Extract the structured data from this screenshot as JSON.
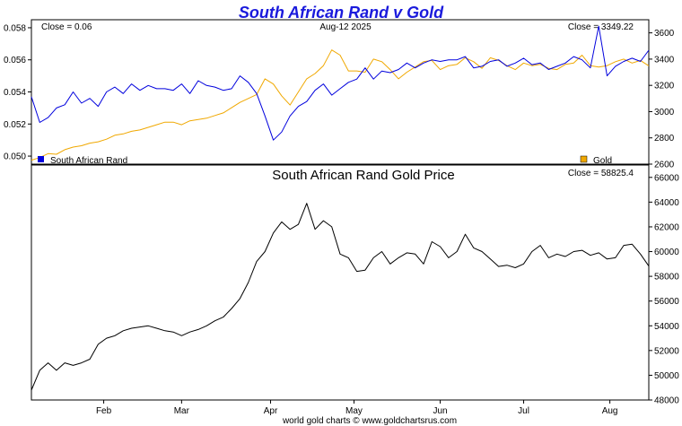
{
  "chart_data": [
    {
      "type": "line",
      "title": "South African Rand v Gold",
      "date_label": "Aug-12  2025",
      "close_left": "Close = 0.06",
      "close_right": "Close = 3349.22",
      "legend": [
        {
          "name": "South African Rand",
          "color": "#0000dd",
          "position": "bottom-left"
        },
        {
          "name": "Gold",
          "color": "#f0a800",
          "position": "bottom-right"
        }
      ],
      "y_left": {
        "min": 0.0495,
        "max": 0.0585,
        "ticks": [
          "0.050",
          "0.052",
          "0.054",
          "0.056",
          "0.058"
        ],
        "tick_values": [
          0.05,
          0.052,
          0.054,
          0.056,
          0.058
        ]
      },
      "y_right": {
        "min": 2600,
        "max": 3700,
        "ticks": [
          "2600",
          "2800",
          "3000",
          "3200",
          "3400",
          "3600"
        ],
        "tick_values": [
          2600,
          2800,
          3000,
          3200,
          3400,
          3600
        ]
      },
      "x_range": [
        0,
        222
      ],
      "series": [
        {
          "name": "South African Rand",
          "axis": "left",
          "color": "#0000dd",
          "x": [
            0,
            3,
            6,
            9,
            12,
            15,
            18,
            21,
            24,
            27,
            30,
            33,
            36,
            39,
            42,
            45,
            48,
            51,
            54,
            57,
            60,
            63,
            66,
            69,
            72,
            75,
            78,
            81,
            84,
            87,
            90,
            93,
            96,
            99,
            102,
            105,
            108,
            111,
            114,
            117,
            120,
            123,
            126,
            129,
            132,
            135,
            138,
            141,
            144,
            147,
            150,
            153,
            156,
            159,
            162,
            165,
            168,
            171,
            174,
            177,
            180,
            183,
            186,
            189,
            192,
            195,
            198,
            201,
            204,
            207,
            210,
            213,
            216,
            219,
            222
          ],
          "values": [
            0.0537,
            0.0521,
            0.0524,
            0.053,
            0.0532,
            0.054,
            0.0533,
            0.0536,
            0.0531,
            0.054,
            0.0543,
            0.0539,
            0.0545,
            0.0541,
            0.0544,
            0.0542,
            0.0542,
            0.0541,
            0.0545,
            0.0539,
            0.0547,
            0.0544,
            0.0543,
            0.0541,
            0.0542,
            0.055,
            0.0546,
            0.0539,
            0.0525,
            0.051,
            0.0515,
            0.0525,
            0.0531,
            0.0534,
            0.0541,
            0.0545,
            0.0538,
            0.0542,
            0.0546,
            0.0548,
            0.0555,
            0.0548,
            0.0553,
            0.0552,
            0.0554,
            0.0558,
            0.0555,
            0.0558,
            0.056,
            0.0559,
            0.056,
            0.056,
            0.0562,
            0.0555,
            0.0556,
            0.0559,
            0.056,
            0.0556,
            0.0558,
            0.0561,
            0.0557,
            0.0558,
            0.0554,
            0.0556,
            0.0558,
            0.0562,
            0.056,
            0.0555,
            0.0581,
            0.055,
            0.0556,
            0.0559,
            0.0561,
            0.0559,
            0.0566
          ]
        },
        {
          "name": "Gold",
          "axis": "right",
          "color": "#f0a800",
          "x": [
            0,
            3,
            6,
            9,
            12,
            15,
            18,
            21,
            24,
            27,
            30,
            33,
            36,
            39,
            42,
            45,
            48,
            51,
            54,
            57,
            60,
            63,
            66,
            69,
            72,
            75,
            78,
            81,
            84,
            87,
            90,
            93,
            96,
            99,
            102,
            105,
            108,
            111,
            114,
            117,
            120,
            123,
            126,
            129,
            132,
            135,
            138,
            141,
            144,
            147,
            150,
            153,
            156,
            159,
            162,
            165,
            168,
            171,
            174,
            177,
            180,
            183,
            186,
            189,
            192,
            195,
            198,
            201,
            204,
            207,
            210,
            213,
            216,
            219,
            222
          ],
          "values": [
            2630,
            2650,
            2680,
            2675,
            2710,
            2730,
            2740,
            2760,
            2770,
            2790,
            2820,
            2830,
            2850,
            2860,
            2880,
            2900,
            2920,
            2920,
            2900,
            2930,
            2940,
            2950,
            2970,
            2990,
            3030,
            3070,
            3100,
            3130,
            3250,
            3210,
            3120,
            3050,
            3150,
            3250,
            3290,
            3350,
            3470,
            3430,
            3310,
            3310,
            3300,
            3400,
            3380,
            3320,
            3250,
            3300,
            3340,
            3380,
            3390,
            3320,
            3350,
            3360,
            3410,
            3380,
            3330,
            3410,
            3390,
            3350,
            3320,
            3370,
            3350,
            3360,
            3330,
            3320,
            3360,
            3370,
            3430,
            3350,
            3340,
            3350,
            3380,
            3400,
            3370,
            3390,
            3349
          ]
        }
      ]
    },
    {
      "type": "line",
      "title": "South African Rand Gold Price",
      "close": "Close = 58825.4",
      "y_right": {
        "min": 48000,
        "max": 67000,
        "ticks": [
          "48000",
          "50000",
          "52000",
          "54000",
          "56000",
          "58000",
          "60000",
          "62000",
          "64000",
          "66000"
        ],
        "tick_values": [
          48000,
          50000,
          52000,
          54000,
          56000,
          58000,
          60000,
          62000,
          64000,
          66000
        ]
      },
      "x_range": [
        0,
        222
      ],
      "x_ticks": [
        {
          "label": "Feb",
          "x": 26
        },
        {
          "label": "Mar",
          "x": 54
        },
        {
          "label": "Apr",
          "x": 86
        },
        {
          "label": "May",
          "x": 116
        },
        {
          "label": "Jun",
          "x": 147
        },
        {
          "label": "Jul",
          "x": 177
        },
        {
          "label": "Aug",
          "x": 208
        }
      ],
      "series": [
        {
          "name": "South African Rand Gold Price",
          "axis": "right",
          "color": "#000000",
          "x": [
            0,
            3,
            6,
            9,
            12,
            15,
            18,
            21,
            24,
            27,
            30,
            33,
            36,
            39,
            42,
            45,
            48,
            51,
            54,
            57,
            60,
            63,
            66,
            69,
            72,
            75,
            78,
            81,
            84,
            87,
            90,
            93,
            96,
            99,
            102,
            105,
            108,
            111,
            114,
            117,
            120,
            123,
            126,
            129,
            132,
            135,
            138,
            141,
            144,
            147,
            150,
            153,
            156,
            159,
            162,
            165,
            168,
            171,
            174,
            177,
            180,
            183,
            186,
            189,
            192,
            195,
            198,
            201,
            204,
            207,
            210,
            213,
            216,
            219,
            222
          ],
          "values": [
            48800,
            50400,
            51000,
            50400,
            51000,
            50800,
            51000,
            51300,
            52500,
            53000,
            53200,
            53600,
            53800,
            53900,
            54000,
            53800,
            53600,
            53500,
            53200,
            53500,
            53700,
            54000,
            54400,
            54700,
            55400,
            56200,
            57500,
            59200,
            60000,
            61500,
            62400,
            61800,
            62200,
            63900,
            61800,
            62500,
            62000,
            59800,
            59500,
            58400,
            58500,
            59500,
            60000,
            59000,
            59500,
            59900,
            59800,
            59000,
            60800,
            60400,
            59500,
            60000,
            61400,
            60300,
            60000,
            59400,
            58800,
            58900,
            58700,
            59000,
            60000,
            60500,
            59500,
            59800,
            59600,
            60000,
            60100,
            59700,
            59900,
            59400,
            59500,
            60500,
            60600,
            59800,
            58825
          ]
        }
      ]
    }
  ],
  "footer": "world gold charts © www.goldchartsrus.com"
}
